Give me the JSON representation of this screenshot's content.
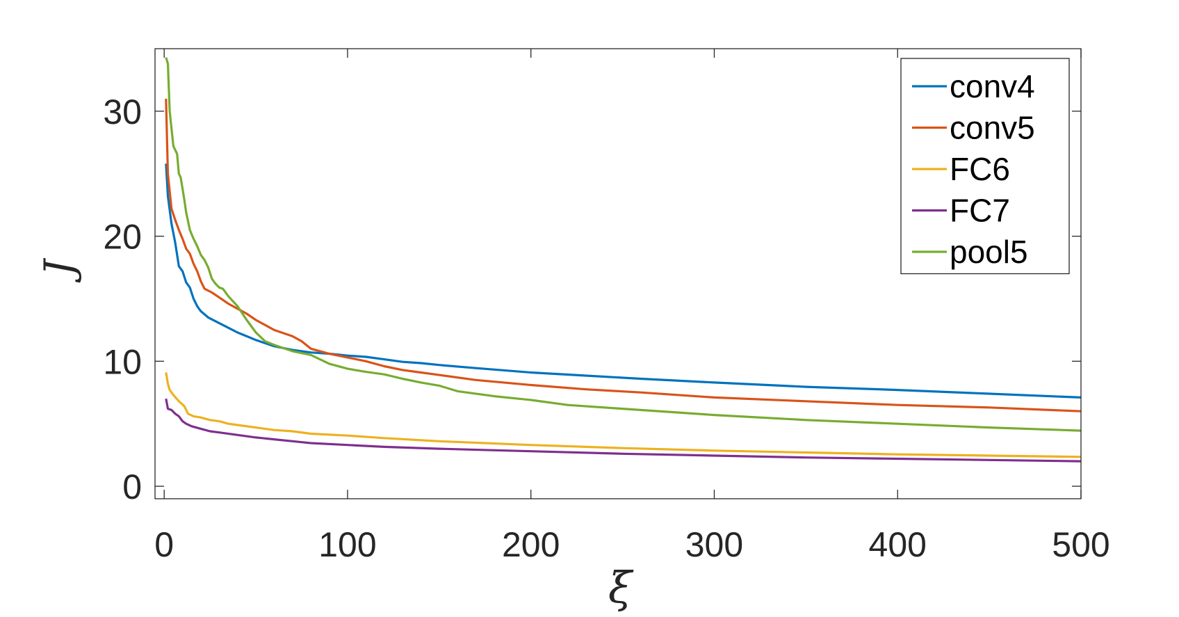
{
  "chart_data": {
    "type": "line",
    "title": "",
    "xlabel": "ξ",
    "ylabel": "J",
    "xlim": [
      -5,
      500
    ],
    "ylim": [
      -1,
      35
    ],
    "xticks": [
      0,
      100,
      200,
      300,
      400,
      500
    ],
    "yticks": [
      0,
      10,
      20,
      30
    ],
    "xtick_labels": [
      "0",
      "100",
      "200",
      "300",
      "400",
      "500"
    ],
    "ytick_labels": [
      "0",
      "10",
      "20",
      "30"
    ],
    "grid": false,
    "legend_position": "top-right",
    "series": [
      {
        "name": "conv4",
        "color": "#0072BD",
        "points": [
          [
            1,
            25.8
          ],
          [
            2,
            23.2
          ],
          [
            4,
            21
          ],
          [
            6,
            19.5
          ],
          [
            8,
            17.6
          ],
          [
            10,
            17.2
          ],
          [
            12,
            16.3
          ],
          [
            14,
            15.9
          ],
          [
            16,
            15
          ],
          [
            18,
            14.4
          ],
          [
            20,
            14
          ],
          [
            24,
            13.5
          ],
          [
            28,
            13.2
          ],
          [
            32,
            12.9
          ],
          [
            36,
            12.6
          ],
          [
            40,
            12.3
          ],
          [
            45,
            12
          ],
          [
            50,
            11.7
          ],
          [
            60,
            11.2
          ],
          [
            70,
            10.9
          ],
          [
            80,
            10.7
          ],
          [
            90,
            10.6
          ],
          [
            100,
            10.45
          ],
          [
            110,
            10.35
          ],
          [
            120,
            10.15
          ],
          [
            130,
            9.95
          ],
          [
            140,
            9.85
          ],
          [
            150,
            9.7
          ],
          [
            170,
            9.45
          ],
          [
            200,
            9.1
          ],
          [
            230,
            8.85
          ],
          [
            260,
            8.6
          ],
          [
            300,
            8.3
          ],
          [
            350,
            7.95
          ],
          [
            400,
            7.7
          ],
          [
            450,
            7.4
          ],
          [
            500,
            7.1
          ]
        ]
      },
      {
        "name": "conv5",
        "color": "#D95319",
        "points": [
          [
            1,
            31
          ],
          [
            2,
            25
          ],
          [
            4,
            22.2
          ],
          [
            6,
            21.3
          ],
          [
            8,
            20.5
          ],
          [
            10,
            19.8
          ],
          [
            12,
            19
          ],
          [
            14,
            18.6
          ],
          [
            16,
            17.8
          ],
          [
            18,
            17.2
          ],
          [
            20,
            16.4
          ],
          [
            22,
            15.8
          ],
          [
            26,
            15.5
          ],
          [
            30,
            15.1
          ],
          [
            35,
            14.6
          ],
          [
            40,
            14.2
          ],
          [
            45,
            13.8
          ],
          [
            50,
            13.3
          ],
          [
            55,
            12.9
          ],
          [
            60,
            12.5
          ],
          [
            70,
            12
          ],
          [
            75,
            11.6
          ],
          [
            80,
            11
          ],
          [
            85,
            10.8
          ],
          [
            90,
            10.6
          ],
          [
            100,
            10.3
          ],
          [
            110,
            10
          ],
          [
            120,
            9.6
          ],
          [
            130,
            9.3
          ],
          [
            140,
            9.1
          ],
          [
            150,
            8.9
          ],
          [
            170,
            8.5
          ],
          [
            200,
            8.1
          ],
          [
            230,
            7.75
          ],
          [
            260,
            7.5
          ],
          [
            300,
            7.1
          ],
          [
            350,
            6.8
          ],
          [
            400,
            6.5
          ],
          [
            450,
            6.3
          ],
          [
            500,
            6
          ]
        ]
      },
      {
        "name": "FC6",
        "color": "#EDB120",
        "points": [
          [
            1,
            9.1
          ],
          [
            2,
            8.2
          ],
          [
            3,
            7.7
          ],
          [
            5,
            7.3
          ],
          [
            8,
            6.8
          ],
          [
            11,
            6.4
          ],
          [
            13,
            5.8
          ],
          [
            16,
            5.6
          ],
          [
            20,
            5.5
          ],
          [
            25,
            5.3
          ],
          [
            30,
            5.2
          ],
          [
            35,
            5
          ],
          [
            40,
            4.9
          ],
          [
            45,
            4.8
          ],
          [
            50,
            4.7
          ],
          [
            55,
            4.6
          ],
          [
            60,
            4.5
          ],
          [
            70,
            4.4
          ],
          [
            80,
            4.2
          ],
          [
            100,
            4.05
          ],
          [
            120,
            3.85
          ],
          [
            150,
            3.6
          ],
          [
            200,
            3.3
          ],
          [
            250,
            3.05
          ],
          [
            300,
            2.85
          ],
          [
            350,
            2.7
          ],
          [
            400,
            2.55
          ],
          [
            450,
            2.45
          ],
          [
            500,
            2.35
          ]
        ]
      },
      {
        "name": "FC7",
        "color": "#7E2F8E",
        "points": [
          [
            1,
            7
          ],
          [
            2,
            6.2
          ],
          [
            4,
            6.1
          ],
          [
            6,
            5.8
          ],
          [
            8,
            5.6
          ],
          [
            10,
            5.2
          ],
          [
            12,
            5
          ],
          [
            15,
            4.8
          ],
          [
            20,
            4.6
          ],
          [
            25,
            4.4
          ],
          [
            30,
            4.3
          ],
          [
            40,
            4.1
          ],
          [
            50,
            3.9
          ],
          [
            60,
            3.75
          ],
          [
            70,
            3.6
          ],
          [
            80,
            3.45
          ],
          [
            100,
            3.3
          ],
          [
            120,
            3.15
          ],
          [
            150,
            3
          ],
          [
            200,
            2.8
          ],
          [
            250,
            2.6
          ],
          [
            300,
            2.45
          ],
          [
            350,
            2.3
          ],
          [
            400,
            2.2
          ],
          [
            450,
            2.1
          ],
          [
            500,
            2
          ]
        ]
      },
      {
        "name": "pool5",
        "color": "#77AC30",
        "points": [
          [
            1,
            34.3
          ],
          [
            2,
            33.8
          ],
          [
            3,
            30
          ],
          [
            5,
            27.2
          ],
          [
            7,
            26.6
          ],
          [
            8,
            25
          ],
          [
            9,
            24.7
          ],
          [
            10,
            23.8
          ],
          [
            11,
            22.9
          ],
          [
            12,
            21.9
          ],
          [
            13,
            21.2
          ],
          [
            14,
            20.5
          ],
          [
            16,
            19.8
          ],
          [
            18,
            19.2
          ],
          [
            20,
            18.5
          ],
          [
            22,
            18.1
          ],
          [
            24,
            17.5
          ],
          [
            26,
            16.6
          ],
          [
            28,
            16.2
          ],
          [
            30,
            15.9
          ],
          [
            32,
            15.8
          ],
          [
            35,
            15.2
          ],
          [
            40,
            14.4
          ],
          [
            45,
            13.3
          ],
          [
            50,
            12.3
          ],
          [
            55,
            11.6
          ],
          [
            60,
            11.3
          ],
          [
            70,
            10.8
          ],
          [
            80,
            10.5
          ],
          [
            90,
            9.8
          ],
          [
            100,
            9.4
          ],
          [
            110,
            9.15
          ],
          [
            120,
            8.95
          ],
          [
            130,
            8.6
          ],
          [
            140,
            8.3
          ],
          [
            150,
            8.05
          ],
          [
            160,
            7.6
          ],
          [
            180,
            7.2
          ],
          [
            200,
            6.9
          ],
          [
            220,
            6.5
          ],
          [
            250,
            6.2
          ],
          [
            300,
            5.7
          ],
          [
            350,
            5.3
          ],
          [
            400,
            5
          ],
          [
            450,
            4.7
          ],
          [
            500,
            4.45
          ]
        ]
      }
    ]
  }
}
